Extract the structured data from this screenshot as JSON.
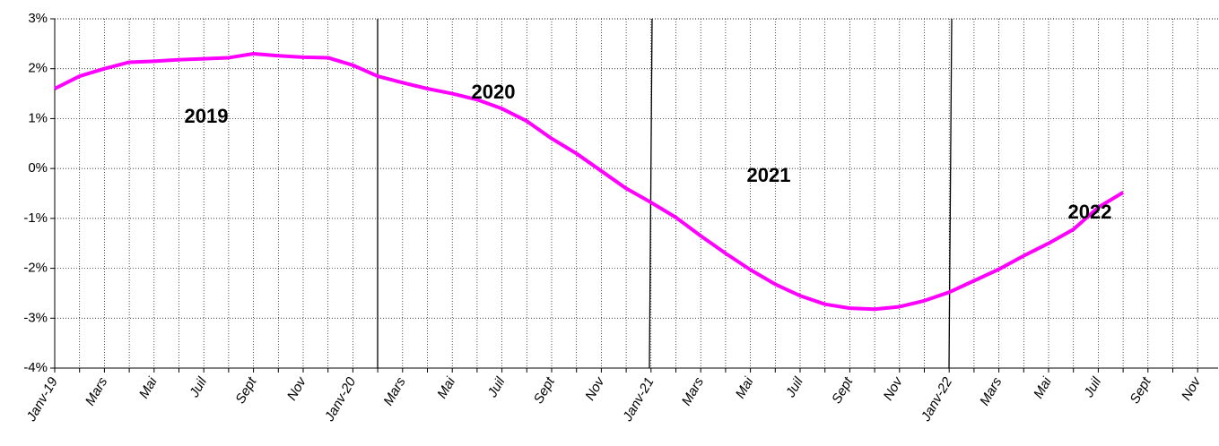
{
  "chart_data": {
    "type": "line",
    "categories": [
      "Janv-19",
      null,
      "Mars",
      null,
      "Mai",
      null,
      "Juil",
      null,
      "Sept",
      null,
      "Nov",
      null,
      "Janv-20",
      null,
      "Mars",
      null,
      "Mai",
      null,
      "Juil",
      null,
      "Sept",
      null,
      "Nov",
      null,
      "Janv-21",
      null,
      "Mars",
      null,
      "Mai",
      null,
      "Juil",
      null,
      "Sept",
      null,
      "Nov",
      null,
      "Janv-22",
      null,
      "Mars",
      null,
      "Mai",
      null,
      "Juil",
      null,
      "Sept",
      null,
      "Nov",
      null
    ],
    "series": [
      {
        "name": null,
        "color": "#ff00ff",
        "values": [
          1.6,
          1.85,
          2.0,
          2.13,
          2.15,
          2.18,
          2.2,
          2.22,
          2.3,
          2.26,
          2.23,
          2.22,
          2.07,
          1.85,
          1.72,
          1.6,
          1.5,
          1.38,
          1.2,
          0.95,
          0.6,
          0.3,
          -0.05,
          -0.4,
          -0.68,
          -0.98,
          -1.35,
          -1.7,
          -2.03,
          -2.32,
          -2.55,
          -2.72,
          -2.8,
          -2.82,
          -2.77,
          -2.65,
          -2.48,
          -2.25,
          -2.02,
          -1.75,
          -1.5,
          -1.22,
          -0.78,
          -0.48,
          null,
          null,
          null,
          null
        ]
      }
    ],
    "ylim": [
      -4,
      3
    ],
    "yticks": [
      {
        "value": -4,
        "label": "-4%"
      },
      {
        "value": -3,
        "label": "-3%"
      },
      {
        "value": -2,
        "label": "-2%"
      },
      {
        "value": -1,
        "label": "-1%"
      },
      {
        "value": 0,
        "label": "0%"
      },
      {
        "value": 1,
        "label": "1%"
      },
      {
        "value": 2,
        "label": "2%"
      },
      {
        "value": 3,
        "label": "3%"
      }
    ],
    "grid": true,
    "annotations": [
      "2019",
      "2020",
      "2021",
      "2022"
    ]
  }
}
